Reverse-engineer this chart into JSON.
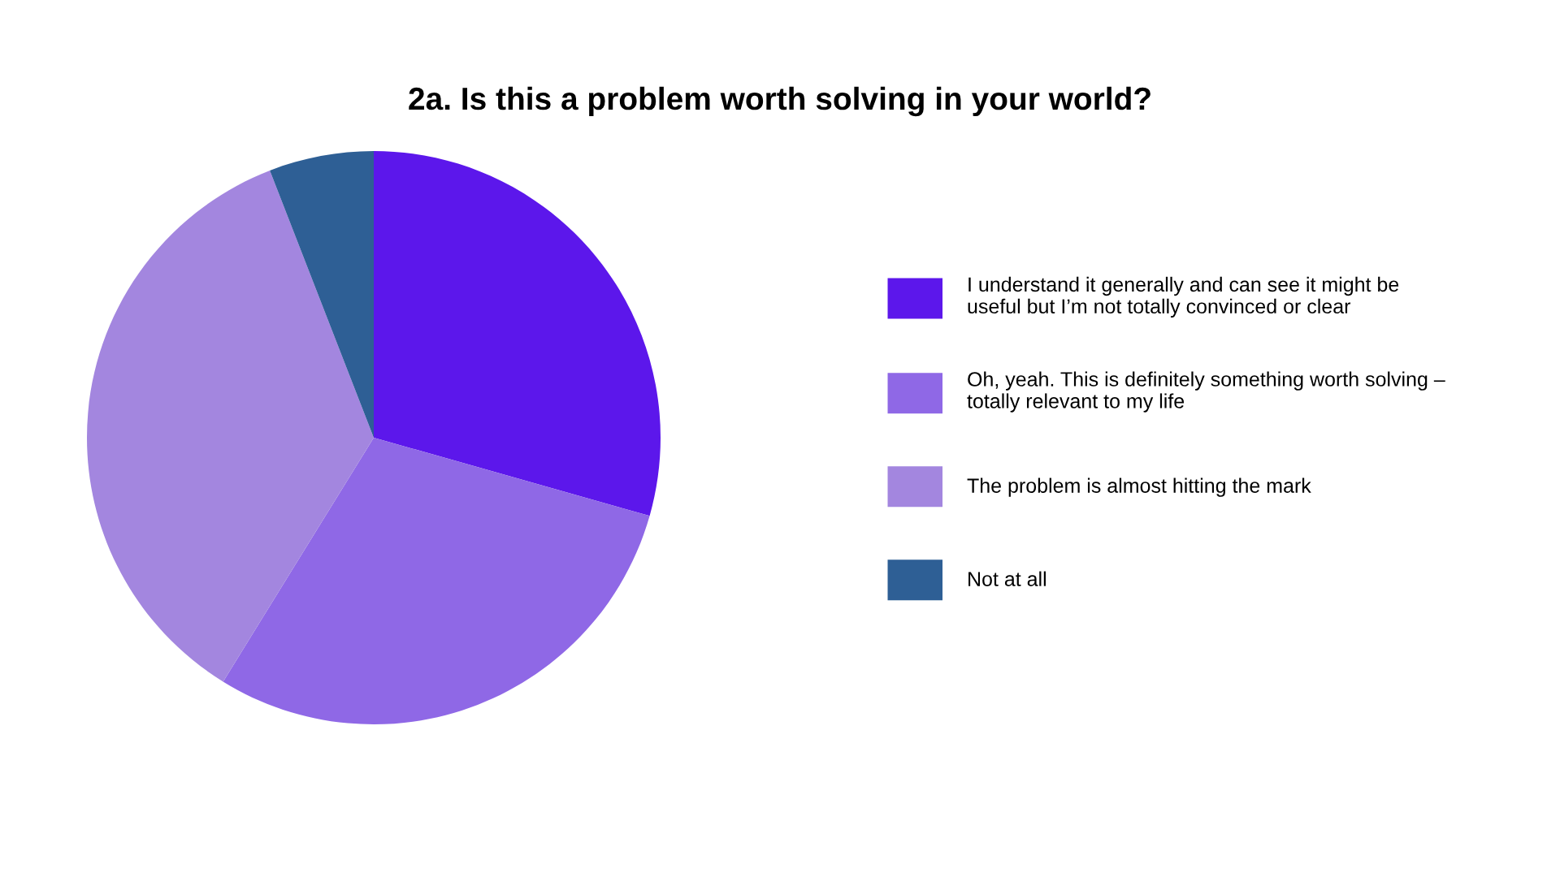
{
  "chart_data": {
    "type": "pie",
    "title": "2a. Is this a problem worth solving in your world?",
    "categories": [
      "I understand it generally and can see it might be\nuseful but I’m not totally convinced or clear",
      "Oh, yeah. This is definitely something worth solving –\ntotally relevant to my life",
      "The problem is almost hitting the mark",
      "Not at all"
    ],
    "values": [
      29.4,
      29.4,
      35.3,
      5.9
    ],
    "colors": [
      "#5c17eb",
      "#8f68e6",
      "#a386df",
      "#2e5f95"
    ],
    "legend": "right"
  }
}
